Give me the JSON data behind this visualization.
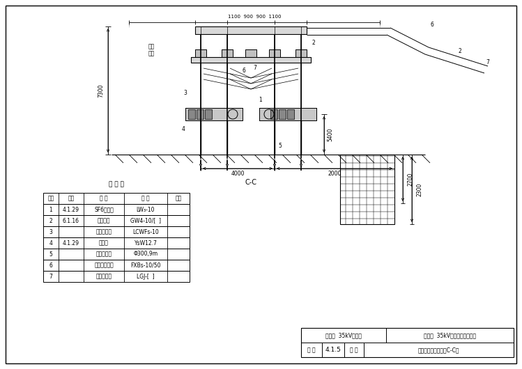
{
  "title": "C-C",
  "bg_color": "#ffffff",
  "line_color": "#000000",
  "fig_width": 7.49,
  "fig_height": 5.3,
  "table_title": "设 备 表",
  "table_headers": [
    "序号",
    "图号",
    "名 称",
    "规 格",
    "备注"
  ],
  "table_rows": [
    [
      "1",
      "4.1.29",
      "SF6断路器",
      "LW₃-10",
      ""
    ],
    [
      "2",
      "6.1.16",
      "隔离开关",
      "GW4-10/[  ]",
      ""
    ],
    [
      "3",
      "",
      "电流互感器",
      "LCWFs-10",
      ""
    ],
    [
      "4",
      "4.1.29",
      "避雷器",
      "YsW12.7",
      ""
    ],
    [
      "5",
      "",
      "等径水泥杆",
      "Φ300,9m",
      ""
    ],
    [
      "6",
      "",
      "立式绕缘子串",
      "FXBs-10/50",
      ""
    ],
    [
      "7",
      "",
      "钓芯绕轴线",
      "LGJ-[  ]",
      ""
    ]
  ],
  "title_box_left": "第四章  35kV变电所",
  "title_box_right": "第一节  35kV户外小型化变电所",
  "title_box_fig_label": "图 号",
  "title_box_fig_num": "4.1.5",
  "title_box_name_label": "图 名",
  "title_box_name": "电容器间隔断面图（C-C）",
  "dim_7300": "7300",
  "dim_5400": "5400",
  "dim_4000": "4000",
  "dim_2000": "2000",
  "dim_2700": "2700",
  "dim_2300": "2300",
  "dim_top": "1100  900  900  1100",
  "label_cap": "电容\n器棚"
}
